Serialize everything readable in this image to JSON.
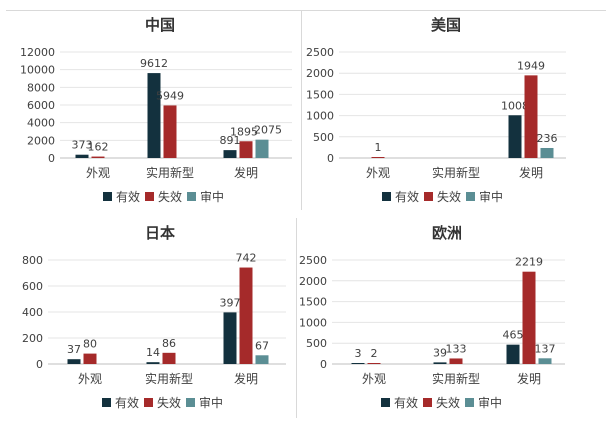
{
  "legend": [
    "有效",
    "失效",
    "审中"
  ],
  "colors": [
    "#13313e",
    "#a52a2a",
    "#5b8e94"
  ],
  "chart_data": [
    {
      "type": "bar",
      "title": "中国",
      "categories": [
        "外观",
        "实用新型",
        "发明"
      ],
      "ylim": [
        0,
        12000
      ],
      "yticks": [
        "0",
        "2000",
        "4000",
        "6000",
        "8000",
        "10000",
        "12000"
      ],
      "series": [
        {
          "name": "有效",
          "values": [
            373,
            9612,
            891
          ]
        },
        {
          "name": "失效",
          "values": [
            162,
            5949,
            1895
          ]
        },
        {
          "name": "审中",
          "values": [
            null,
            null,
            2075
          ]
        }
      ],
      "data_labels": [
        [
          "373",
          "9612",
          "891"
        ],
        [
          "162",
          "5949",
          "1895"
        ],
        [
          null,
          null,
          "2075"
        ]
      ]
    },
    {
      "type": "bar",
      "title": "美国",
      "categories": [
        "外观",
        "实用新型",
        "发明"
      ],
      "ylim": [
        0,
        2500
      ],
      "yticks": [
        "0",
        "500",
        "1000",
        "1500",
        "2000",
        "2500"
      ],
      "series": [
        {
          "name": "有效",
          "values": [
            null,
            null,
            1008
          ]
        },
        {
          "name": "失效",
          "values": [
            1,
            null,
            1949
          ]
        },
        {
          "name": "审中",
          "values": [
            null,
            null,
            236
          ]
        }
      ],
      "data_labels": [
        [
          null,
          null,
          "1008"
        ],
        [
          "1",
          null,
          "1949"
        ],
        [
          null,
          null,
          "236"
        ]
      ]
    },
    {
      "type": "bar",
      "title": "日本",
      "categories": [
        "外观",
        "实用新型",
        "发明"
      ],
      "ylim": [
        0,
        800
      ],
      "yticks": [
        "0",
        "200",
        "400",
        "600",
        "800"
      ],
      "series": [
        {
          "name": "有效",
          "values": [
            37,
            14,
            397
          ]
        },
        {
          "name": "失效",
          "values": [
            80,
            86,
            742
          ]
        },
        {
          "name": "审中",
          "values": [
            null,
            null,
            67
          ]
        }
      ],
      "data_labels": [
        [
          "37",
          "14",
          "397"
        ],
        [
          "80",
          "86",
          "742"
        ],
        [
          null,
          null,
          "67"
        ]
      ]
    },
    {
      "type": "bar",
      "title": "欧洲",
      "categories": [
        "外观",
        "实用新型",
        "发明"
      ],
      "ylim": [
        0,
        2500
      ],
      "yticks": [
        "0",
        "500",
        "1000",
        "1500",
        "2000",
        "2500"
      ],
      "series": [
        {
          "name": "有效",
          "values": [
            3,
            39,
            465
          ]
        },
        {
          "name": "失效",
          "values": [
            2,
            133,
            2219
          ]
        },
        {
          "name": "审中",
          "values": [
            null,
            null,
            137
          ]
        }
      ],
      "data_labels": [
        [
          "3",
          "39",
          "465"
        ],
        [
          "2",
          "133",
          "2219"
        ],
        [
          null,
          null,
          "137"
        ]
      ]
    }
  ]
}
